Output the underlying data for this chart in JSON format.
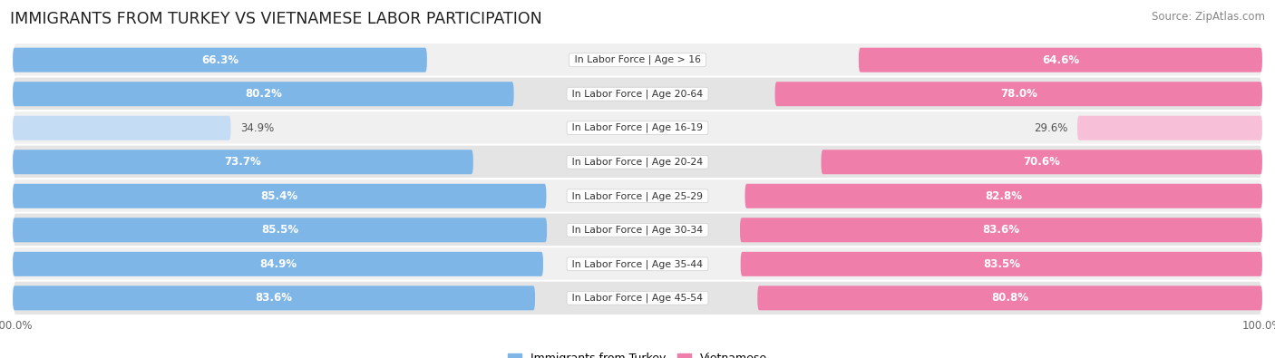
{
  "title": "IMMIGRANTS FROM TURKEY VS VIETNAMESE LABOR PARTICIPATION",
  "source": "Source: ZipAtlas.com",
  "categories": [
    "In Labor Force | Age > 16",
    "In Labor Force | Age 20-64",
    "In Labor Force | Age 16-19",
    "In Labor Force | Age 20-24",
    "In Labor Force | Age 25-29",
    "In Labor Force | Age 30-34",
    "In Labor Force | Age 35-44",
    "In Labor Force | Age 45-54"
  ],
  "turkey_values": [
    66.3,
    80.2,
    34.9,
    73.7,
    85.4,
    85.5,
    84.9,
    83.6
  ],
  "vietnamese_values": [
    64.6,
    78.0,
    29.6,
    70.6,
    82.8,
    83.6,
    83.5,
    80.8
  ],
  "turkey_color": "#7EB6E8",
  "turkey_color_light": "#C5DCF5",
  "vietnamese_color": "#F07EAA",
  "vietnamese_color_light": "#F8C0D8",
  "row_bg_odd": "#F0F0F0",
  "row_bg_even": "#E4E4E4",
  "max_val": 100.0,
  "title_fontsize": 12.5,
  "source_fontsize": 8.5,
  "value_fontsize": 8.5,
  "cat_fontsize": 7.8,
  "legend_fontsize": 9,
  "axis_tick_fontsize": 8.5
}
